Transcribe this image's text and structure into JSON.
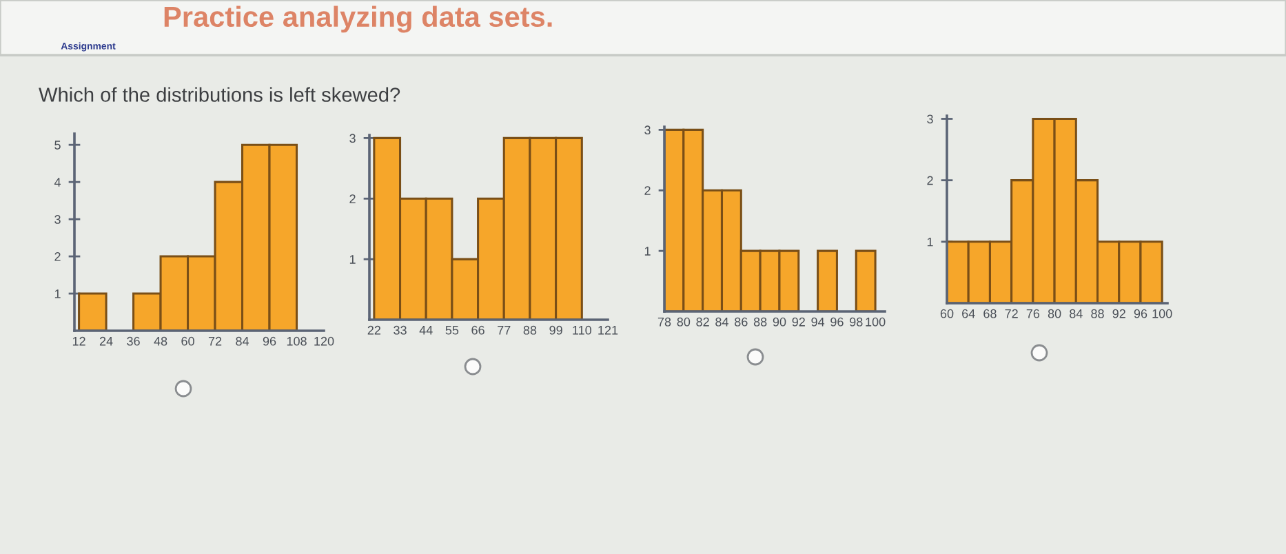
{
  "chart_data": [
    {
      "type": "other",
      "title": "Practice analyzing data sets.",
      "subtitle": "Which of the distributions is left skewed?",
      "annotations": [
        "Assignment"
      ]
    },
    {
      "type": "histogram",
      "bins": [
        12,
        24,
        36,
        48,
        60,
        72,
        84,
        96,
        108
      ],
      "values": [
        1,
        0,
        1,
        2,
        2,
        4,
        5,
        5
      ],
      "color": "#f6a62a",
      "xlim": [
        10,
        120
      ],
      "xticks": [
        12,
        24,
        36,
        48,
        60,
        72,
        84,
        96,
        108,
        120
      ],
      "ylim": [
        0,
        5.3
      ],
      "yticks": [
        1,
        2,
        3,
        4,
        5
      ]
    },
    {
      "type": "histogram",
      "bins": [
        22,
        33,
        44,
        55,
        66,
        77,
        88,
        99,
        110
      ],
      "values": [
        3,
        2,
        2,
        1,
        2,
        3,
        3,
        3
      ],
      "color": "#f6a62a",
      "xlim": [
        20,
        121
      ],
      "xticks": [
        22,
        33,
        44,
        55,
        66,
        77,
        88,
        99,
        110,
        121
      ],
      "ylim": [
        0,
        3.05
      ],
      "yticks": [
        1,
        2,
        3
      ]
    },
    {
      "type": "histogram",
      "bins": [
        78,
        80,
        82,
        84,
        86,
        88,
        90,
        92,
        94,
        96,
        98,
        100
      ],
      "values": [
        3,
        3,
        2,
        2,
        1,
        1,
        1,
        0,
        1,
        0,
        1
      ],
      "color": "#f6a62a",
      "xlim": [
        78,
        101
      ],
      "xticks": [
        78,
        80,
        82,
        84,
        86,
        88,
        90,
        92,
        94,
        96,
        98,
        100
      ],
      "ylim": [
        0,
        3.05
      ],
      "yticks": [
        1,
        2,
        3
      ]
    },
    {
      "type": "histogram",
      "bins": [
        60,
        64,
        68,
        72,
        76,
        80,
        84,
        88,
        92,
        96,
        100
      ],
      "values": [
        1,
        1,
        1,
        2,
        3,
        3,
        2,
        1,
        1,
        1
      ],
      "color": "#f6a62a",
      "xlim": [
        60,
        101
      ],
      "xticks": [
        60,
        64,
        68,
        72,
        76,
        80,
        84,
        88,
        92,
        96,
        100
      ],
      "ylim": [
        0,
        3.05
      ],
      "yticks": [
        1,
        2,
        3
      ]
    }
  ]
}
